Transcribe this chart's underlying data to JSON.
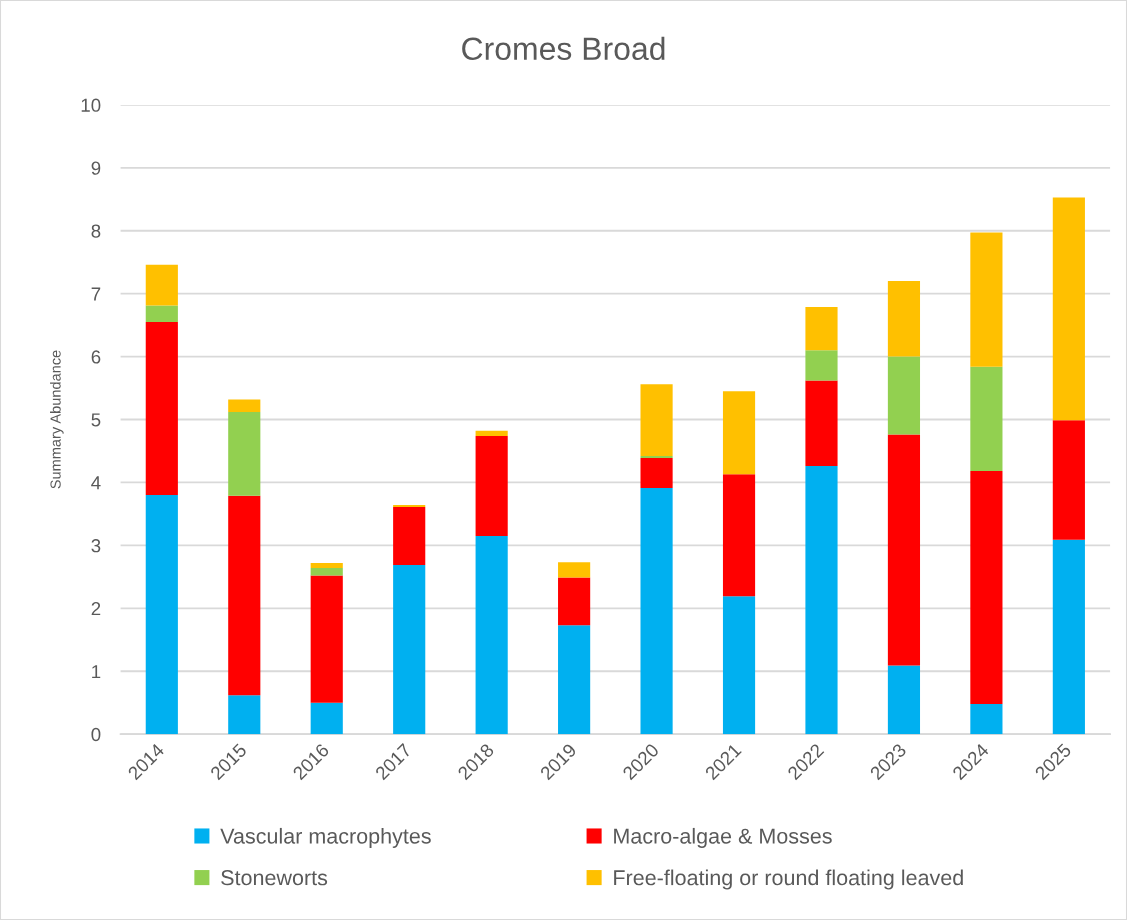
{
  "chart_data": {
    "type": "bar",
    "title": "Cromes Broad",
    "ylabel": "Summary Abundance",
    "categories": [
      "2014",
      "2015",
      "2016",
      "2017",
      "2018",
      "2019",
      "2020",
      "2021",
      "2022",
      "2023",
      "2024",
      "2025"
    ],
    "stacked": true,
    "series": [
      {
        "name": "Vascular macrophytes",
        "color": "#00b0f0",
        "values": [
          3.8,
          0.62,
          0.5,
          2.69,
          3.15,
          1.73,
          3.91,
          2.19,
          4.26,
          1.09,
          0.48,
          3.09
        ]
      },
      {
        "name": "Macro-algae & Mosses",
        "color": "#ff0000",
        "values": [
          2.75,
          3.17,
          2.02,
          0.92,
          1.59,
          0.76,
          0.48,
          1.94,
          1.36,
          3.67,
          3.7,
          1.9
        ]
      },
      {
        "name": "Stoneworts",
        "color": "#92d050",
        "values": [
          0.26,
          1.33,
          0.12,
          0,
          0,
          0,
          0.03,
          0,
          0.48,
          1.24,
          1.66,
          0
        ]
      },
      {
        "name": "Free-floating or round floating leaved",
        "color": "#ffc000",
        "values": [
          0.65,
          0.2,
          0.08,
          0.03,
          0.08,
          0.24,
          1.14,
          1.32,
          0.69,
          1.2,
          2.13,
          3.54
        ]
      }
    ],
    "ylim": [
      0,
      10
    ],
    "yticks": [
      0,
      1,
      2,
      3,
      4,
      5,
      6,
      7,
      8,
      9,
      10
    ],
    "grid": "y",
    "legend": "bottom"
  }
}
